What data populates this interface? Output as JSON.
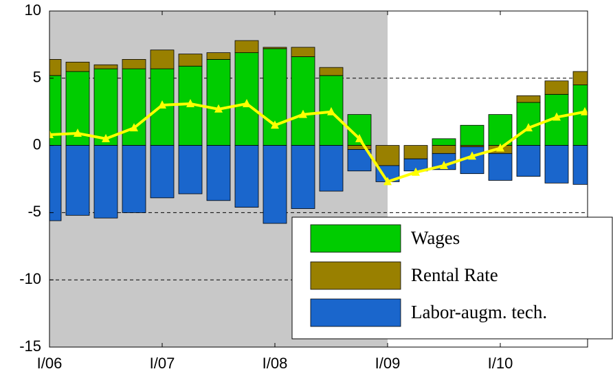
{
  "chart_data": {
    "type": "bar",
    "stacked": true,
    "categories": [
      "I/06",
      null,
      null,
      null,
      "I/07",
      null,
      null,
      null,
      "I/08",
      null,
      null,
      null,
      "I/09",
      null,
      null,
      null,
      "I/10",
      null,
      null,
      null
    ],
    "series": [
      {
        "name": "Wages",
        "color": "#00cc00",
        "values": [
          5.2,
          5.5,
          5.7,
          5.7,
          5.7,
          5.9,
          6.4,
          6.9,
          7.2,
          6.6,
          5.2,
          2.3,
          0,
          0,
          0.5,
          1.5,
          2.3,
          3.2,
          3.8,
          4.5
        ]
      },
      {
        "name": "Rental Rate",
        "color": "#998000",
        "values": [
          1.2,
          0.7,
          0.3,
          0.7,
          1.4,
          0.9,
          0.5,
          0.9,
          0.1,
          0.7,
          0.6,
          -0.3,
          -1.5,
          -1.0,
          -0.6,
          -0.1,
          -0.6,
          0.5,
          1.0,
          1.0
        ]
      },
      {
        "name": "Labor-augm. tech.",
        "color": "#1a66cc",
        "values": [
          -5.6,
          -5.2,
          -5.4,
          -5.0,
          -3.9,
          -3.6,
          -4.1,
          -4.6,
          -5.8,
          -4.7,
          -3.4,
          -1.6,
          -1.2,
          -0.9,
          -1.2,
          -2.0,
          -2.0,
          -2.3,
          -2.8,
          -2.9
        ]
      }
    ],
    "line": {
      "color": "#ffff00",
      "values": [
        0.8,
        0.9,
        0.5,
        1.3,
        3.0,
        3.1,
        2.7,
        3.1,
        1.5,
        2.3,
        2.5,
        0.5,
        -2.7,
        -2.0,
        -1.5,
        -0.8,
        -0.2,
        1.3,
        2.1,
        2.5
      ]
    },
    "shaded_region": {
      "from": 0,
      "to": 12,
      "color": "#c8c8c8"
    },
    "ylim": [
      -15,
      10
    ],
    "yticks": [
      -15,
      -10,
      -5,
      0,
      5,
      10
    ],
    "grid": true,
    "legend": "bottom-right"
  }
}
